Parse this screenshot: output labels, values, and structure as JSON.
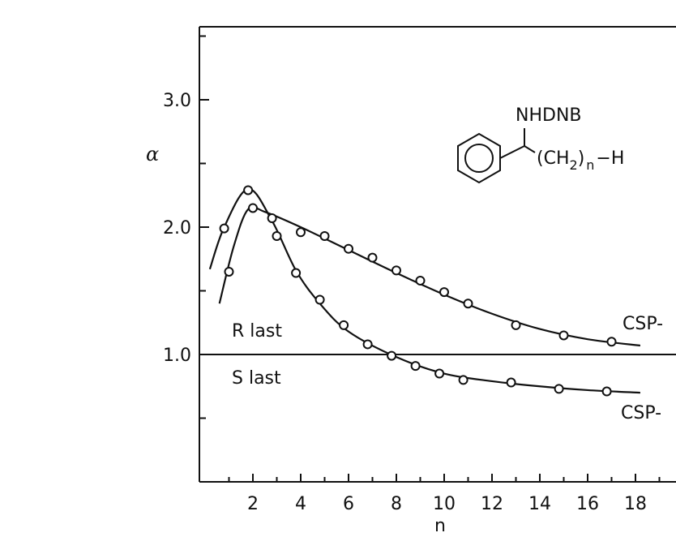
{
  "chart_data": {
    "type": "line",
    "title": "",
    "xlabel": "n",
    "ylabel": "α",
    "xlim": [
      0,
      19
    ],
    "ylim": [
      0,
      3.5
    ],
    "x_ticks": [
      2,
      4,
      6,
      8,
      10,
      12,
      14,
      16,
      18
    ],
    "y_ticks": [
      1.0,
      2.0,
      3.0
    ],
    "reference_line": 1.0,
    "region_labels": [
      "R last",
      "S last"
    ],
    "structure": {
      "substituent": "NHDNB",
      "chain_label": "(CH",
      "chain_subscript": "2",
      "chain_close": ")",
      "chain_n": "n",
      "chain_end": "−H"
    },
    "series": [
      {
        "name": "CSP-",
        "points": [
          {
            "x": 1,
            "y": 1.65
          },
          {
            "x": 2,
            "y": 2.15
          },
          {
            "x": 3,
            "y": 1.93
          },
          {
            "x": 4,
            "y": 1.96
          },
          {
            "x": 5,
            "y": 1.93
          },
          {
            "x": 6,
            "y": 1.83
          },
          {
            "x": 7,
            "y": 1.76
          },
          {
            "x": 8,
            "y": 1.66
          },
          {
            "x": 9,
            "y": 1.58
          },
          {
            "x": 10,
            "y": 1.49
          },
          {
            "x": 11,
            "y": 1.4
          },
          {
            "x": 13,
            "y": 1.23
          },
          {
            "x": 15,
            "y": 1.15
          },
          {
            "x": 17,
            "y": 1.1
          }
        ],
        "curve": [
          {
            "x": 0.6,
            "y": 1.4
          },
          {
            "x": 1.2,
            "y": 1.85
          },
          {
            "x": 1.8,
            "y": 2.14
          },
          {
            "x": 2.5,
            "y": 2.12
          },
          {
            "x": 4,
            "y": 2.0
          },
          {
            "x": 6,
            "y": 1.82
          },
          {
            "x": 8,
            "y": 1.64
          },
          {
            "x": 10,
            "y": 1.47
          },
          {
            "x": 12,
            "y": 1.32
          },
          {
            "x": 14,
            "y": 1.2
          },
          {
            "x": 16,
            "y": 1.12
          },
          {
            "x": 18.2,
            "y": 1.07
          }
        ]
      },
      {
        "name": "CSP-",
        "points": [
          {
            "x": 0.8,
            "y": 1.99
          },
          {
            "x": 1.8,
            "y": 2.29
          },
          {
            "x": 2.8,
            "y": 2.07
          },
          {
            "x": 3.8,
            "y": 1.64
          },
          {
            "x": 4.8,
            "y": 1.43
          },
          {
            "x": 5.8,
            "y": 1.23
          },
          {
            "x": 6.8,
            "y": 1.08
          },
          {
            "x": 7.8,
            "y": 0.99
          },
          {
            "x": 8.8,
            "y": 0.91
          },
          {
            "x": 9.8,
            "y": 0.85
          },
          {
            "x": 10.8,
            "y": 0.8
          },
          {
            "x": 12.8,
            "y": 0.78
          },
          {
            "x": 14.8,
            "y": 0.73
          },
          {
            "x": 16.8,
            "y": 0.71
          }
        ],
        "curve": [
          {
            "x": 0.2,
            "y": 1.67
          },
          {
            "x": 0.8,
            "y": 2.0
          },
          {
            "x": 1.8,
            "y": 2.3
          },
          {
            "x": 2.8,
            "y": 2.05
          },
          {
            "x": 3.8,
            "y": 1.66
          },
          {
            "x": 4.8,
            "y": 1.4
          },
          {
            "x": 6,
            "y": 1.18
          },
          {
            "x": 8,
            "y": 0.98
          },
          {
            "x": 10,
            "y": 0.85
          },
          {
            "x": 12,
            "y": 0.79
          },
          {
            "x": 14,
            "y": 0.75
          },
          {
            "x": 16,
            "y": 0.72
          },
          {
            "x": 18.2,
            "y": 0.7
          }
        ]
      }
    ]
  }
}
